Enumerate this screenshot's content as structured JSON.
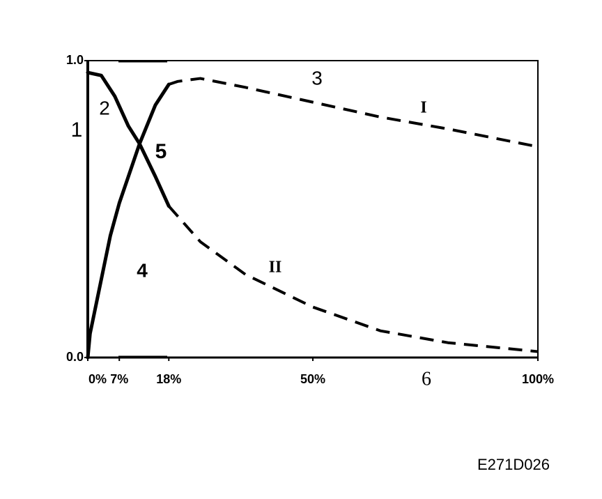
{
  "chart_data": {
    "type": "line",
    "xlim": [
      0,
      100
    ],
    "ylim": [
      0,
      1
    ],
    "xticks": [
      {
        "value": 0,
        "label": "0%"
      },
      {
        "value": 7,
        "label": "7%"
      },
      {
        "value": 18,
        "label": "18%"
      },
      {
        "value": 50,
        "label": "50%"
      },
      {
        "value": 100,
        "label": "100%"
      }
    ],
    "yticks": [
      {
        "value": 0,
        "label": "0.0"
      },
      {
        "value": 1,
        "label": "1.0"
      }
    ],
    "series": [
      {
        "name": "I",
        "color": "#000000",
        "segments": [
          {
            "style": "solid",
            "x": [
              0,
              0.5,
              2,
              5,
              7,
              11.5,
              15,
              18
            ],
            "values": [
              0,
              0.08,
              0.19,
              0.41,
              0.52,
              0.72,
              0.85,
              0.92
            ]
          },
          {
            "style": "dashed",
            "x": [
              18,
              20,
              25,
              35,
              50,
              65,
              80,
              100
            ],
            "values": [
              0.92,
              0.93,
              0.94,
              0.91,
              0.86,
              0.81,
              0.77,
              0.71
            ]
          }
        ]
      },
      {
        "name": "II",
        "color": "#000000",
        "segments": [
          {
            "style": "solid",
            "x": [
              0,
              3,
              6,
              9,
              11.5,
              15,
              18
            ],
            "values": [
              0.96,
              0.95,
              0.88,
              0.78,
              0.72,
              0.61,
              0.51
            ]
          },
          {
            "style": "dashed",
            "x": [
              18,
              25,
              35,
              50,
              65,
              80,
              100
            ],
            "values": [
              0.51,
              0.39,
              0.28,
              0.17,
              0.09,
              0.05,
              0.02
            ]
          }
        ]
      }
    ],
    "annotations": [
      "1",
      "2",
      "3",
      "4",
      "5",
      "6"
    ],
    "code": "E271D026"
  }
}
